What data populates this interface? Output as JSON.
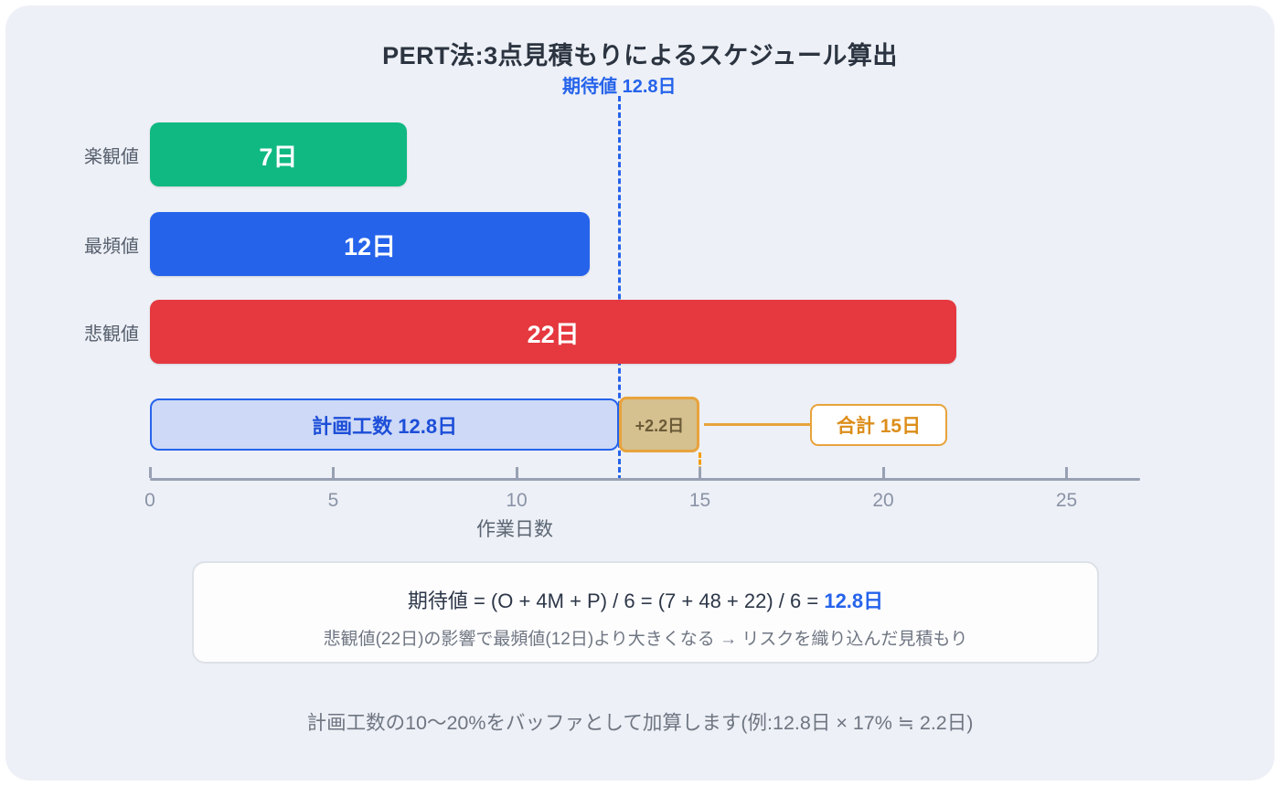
{
  "title": "PERT法:3点見積もりによるスケジュール算出",
  "chart_data": {
    "type": "bar",
    "orientation": "horizontal",
    "title": "PERT法:3点見積もりによるスケジュール算出",
    "xlabel": "作業日数",
    "x_ticks": [
      0,
      5,
      10,
      15,
      20,
      25
    ],
    "xlim": [
      0,
      27
    ],
    "grid": false,
    "bars": [
      {
        "key": "optimistic",
        "label": "楽観値",
        "value": 7,
        "value_label": "7日",
        "color": "#10b981"
      },
      {
        "key": "most_likely",
        "label": "最頻値",
        "value": 12,
        "value_label": "12日",
        "color": "#2563eb"
      },
      {
        "key": "pessimistic",
        "label": "悲観値",
        "value": 22,
        "value_label": "22日",
        "color": "#e5383f"
      }
    ],
    "plan_bar": {
      "label": "計画工数 12.8日",
      "value": 12.8,
      "fill": "#cdd9f6",
      "border": "#2563eb"
    },
    "buffer": {
      "label": "+2.2日",
      "from": 12.8,
      "to": 15,
      "fill": "#d5c08f",
      "border": "#e8a33c"
    },
    "total": {
      "label": "合計 15日",
      "value": 15,
      "color": "#dc8e1a"
    },
    "expected": {
      "label": "期待値 12.8日",
      "value": 12.8,
      "color": "#2563eb"
    }
  },
  "formula": {
    "line1_prefix": "期待値 = (O + 4M + P) / 6 = (7 + 48 + 22) / 6 = ",
    "line1_value": "12.8日",
    "line2": "悲観値(22日)の影響で最頻値(12日)より大きくなる → リスクを織り込んだ見積もり"
  },
  "footnote": "計画工数の10〜20%をバッファとして加算します(例:12.8日 × 17% ≒ 2.2日)"
}
